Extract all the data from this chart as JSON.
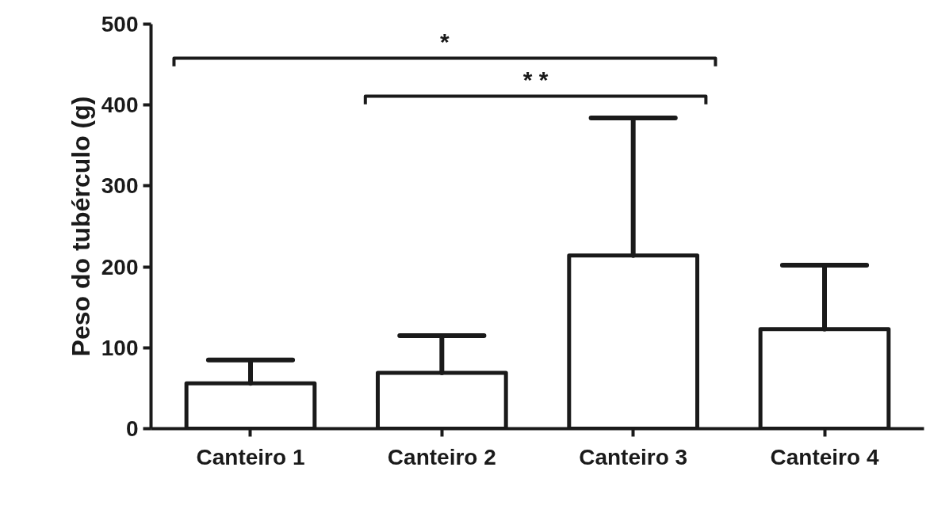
{
  "chart_data": {
    "type": "bar",
    "ylabel": "Peso do tubérculo (g)",
    "categories": [
      "Canteiro 1",
      "Canteiro 2",
      "Canteiro 3",
      "Canteiro 4"
    ],
    "values": [
      56,
      69,
      214,
      123
    ],
    "errors": [
      [
        56,
        85
      ],
      [
        69,
        115
      ],
      [
        214,
        384
      ],
      [
        123,
        202
      ]
    ],
    "color": "#ffffff",
    "ylim": [
      0,
      500
    ],
    "yticks": [
      0,
      100,
      200,
      300,
      400,
      500
    ],
    "grid": false,
    "annotations": [
      "*",
      "* *"
    ]
  }
}
